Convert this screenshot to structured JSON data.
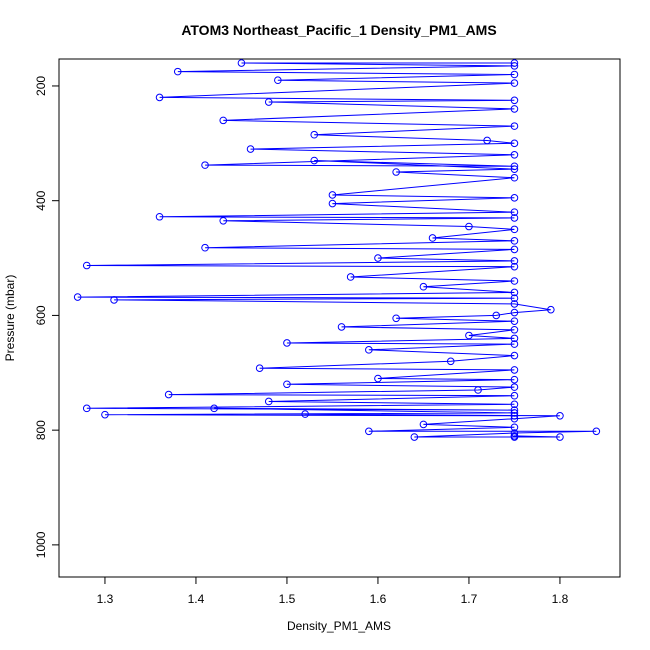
{
  "chart_data": {
    "type": "line",
    "title": "ATOM3 Northeast_Pacific_1 Density_PM1_AMS",
    "xlabel": "Density_PM1_AMS",
    "ylabel": "Pressure (mbar)",
    "color": "#0000ff",
    "markers": true,
    "y_reversed": true,
    "xlim": [
      1.2495,
      1.866
    ],
    "ylim": [
      153,
      1056
    ],
    "xticks": [
      1.3,
      1.4,
      1.5,
      1.6,
      1.7,
      1.8
    ],
    "yticks": [
      200,
      400,
      600,
      800,
      1000
    ],
    "x": [
      1.75,
      1.45,
      1.75,
      1.38,
      1.75,
      1.49,
      1.75,
      1.36,
      1.75,
      1.48,
      1.75,
      1.43,
      1.75,
      1.53,
      1.72,
      1.75,
      1.46,
      1.75,
      1.41,
      1.75,
      1.53,
      1.75,
      1.62,
      1.75,
      1.55,
      1.75,
      1.55,
      1.75,
      1.36,
      1.75,
      1.43,
      1.7,
      1.75,
      1.66,
      1.75,
      1.41,
      1.75,
      1.6,
      1.75,
      1.28,
      1.75,
      1.57,
      1.75,
      1.65,
      1.75,
      1.27,
      1.75,
      1.31,
      1.75,
      1.79,
      1.75,
      1.73,
      1.62,
      1.75,
      1.56,
      1.75,
      1.7,
      1.75,
      1.5,
      1.75,
      1.59,
      1.75,
      1.68,
      1.47,
      1.75,
      1.6,
      1.75,
      1.5,
      1.75,
      1.71,
      1.37,
      1.75,
      1.48,
      1.75,
      1.28,
      1.75,
      1.42,
      1.75,
      1.3,
      1.75,
      1.52,
      1.8,
      1.75,
      1.65,
      1.75,
      1.59,
      1.84,
      1.75,
      1.64,
      1.8,
      1.75,
      1.75
    ],
    "y": [
      160,
      160,
      165,
      175,
      180,
      190,
      195,
      220,
      225,
      228,
      240,
      260,
      270,
      285,
      295,
      300,
      310,
      320,
      338,
      340,
      330,
      345,
      350,
      360,
      390,
      395,
      405,
      420,
      428,
      430,
      435,
      445,
      450,
      465,
      470,
      482,
      485,
      500,
      505,
      513,
      515,
      533,
      540,
      550,
      560,
      568,
      570,
      573,
      580,
      590,
      595,
      600,
      605,
      610,
      620,
      625,
      635,
      640,
      648,
      650,
      660,
      670,
      680,
      692,
      695,
      710,
      712,
      720,
      725,
      730,
      738,
      740,
      750,
      755,
      762,
      765,
      762,
      770,
      773,
      775,
      772,
      775,
      780,
      790,
      795,
      802,
      802,
      805,
      812,
      812,
      810,
      812
    ]
  }
}
